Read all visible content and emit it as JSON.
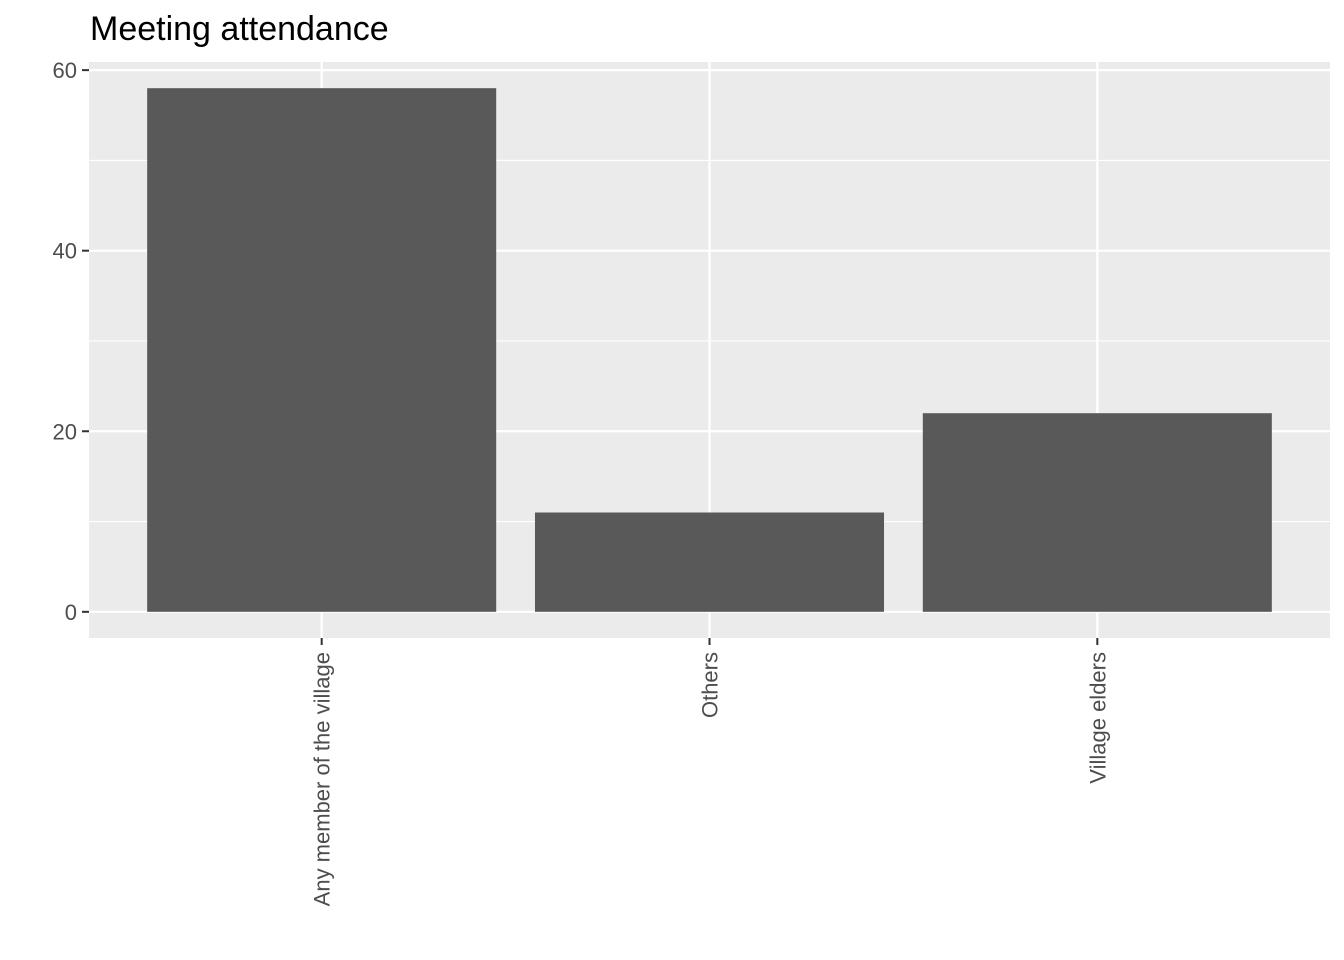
{
  "chart_data": {
    "type": "bar",
    "title": "Meeting attendance",
    "xlabel": "",
    "ylabel": "",
    "categories": [
      "Any member of the village",
      "Others",
      "Village elders"
    ],
    "values": [
      58,
      11,
      22
    ],
    "ylim": [
      -2.9,
      60.9
    ],
    "yticks": [
      0,
      20,
      40,
      60
    ],
    "grid": true,
    "legend": "none",
    "colors": {
      "bar": "#595959",
      "panel": "#ebebeb",
      "grid": "#ffffff",
      "tick": "#333333",
      "text": "#4d4d4d"
    }
  }
}
